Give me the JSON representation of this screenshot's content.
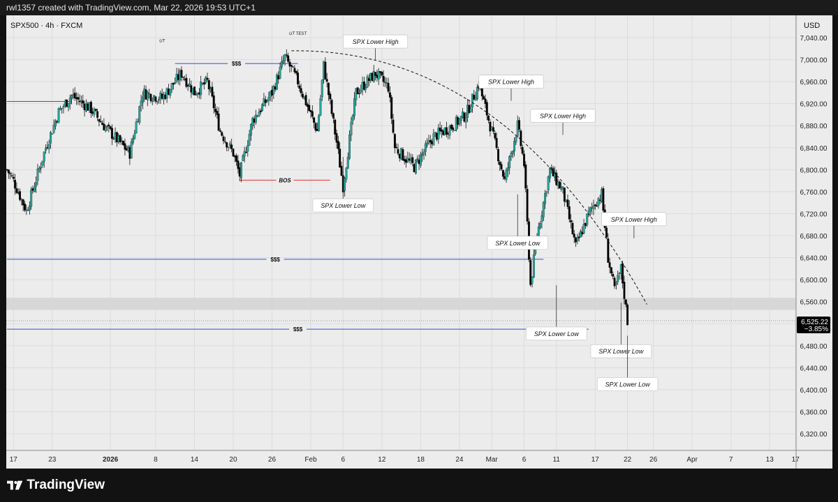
{
  "header": {
    "attribution": "rwl1357 created with TradingView.com, Mar 22, 2026 19:53 UTC+1"
  },
  "chart": {
    "symbol": "SPX500 · 4h · FXCM",
    "currency": "USD"
  },
  "price_badge": {
    "price": "6,525.22",
    "change": "−3.85%"
  },
  "footer": {
    "brand": "TradingView"
  },
  "colors": {
    "up": "#26a69a",
    "down": "#000000",
    "level_line": "#2f4fd6",
    "bos_line": "#e03030",
    "zone": "#d4d4d4",
    "badge_bg": "#000000"
  },
  "chart_data": {
    "type": "candlestick",
    "instrument": "SPX500",
    "timeframe": "4h",
    "source": "FXCM",
    "y_axis": {
      "unit": "USD",
      "range": [
        6300,
        7080
      ],
      "ticks": [
        "7,040.00",
        "7,000.00",
        "6,960.00",
        "6,920.00",
        "6,880.00",
        "6,840.00",
        "6,800.00",
        "6,760.00",
        "6,720.00",
        "6,680.00",
        "6,640.00",
        "6,600.00",
        "6,560.00",
        "6,520.00",
        "6,480.00",
        "6,440.00",
        "6,400.00",
        "6,360.00",
        "6,320.00"
      ]
    },
    "x_axis": {
      "range": [
        "2025-12-16",
        "2026-04-20"
      ],
      "ticks": [
        {
          "label": "17",
          "date": "2025-12-17"
        },
        {
          "label": "23",
          "date": "2025-12-23"
        },
        {
          "label": "2026",
          "date": "2026-01-01"
        },
        {
          "label": "8",
          "date": "2026-01-08"
        },
        {
          "label": "14",
          "date": "2026-01-14"
        },
        {
          "label": "20",
          "date": "2026-01-20"
        },
        {
          "label": "26",
          "date": "2026-01-26"
        },
        {
          "label": "Feb",
          "date": "2026-02-01"
        },
        {
          "label": "6",
          "date": "2026-02-06"
        },
        {
          "label": "12",
          "date": "2026-02-12"
        },
        {
          "label": "18",
          "date": "2026-02-18"
        },
        {
          "label": "24",
          "date": "2026-02-24"
        },
        {
          "label": "Mar",
          "date": "2026-03-01"
        },
        {
          "label": "6",
          "date": "2026-03-06"
        },
        {
          "label": "11",
          "date": "2026-03-11"
        },
        {
          "label": "17",
          "date": "2026-03-17"
        },
        {
          "label": "22",
          "date": "2026-03-22"
        },
        {
          "label": "26",
          "date": "2026-03-26"
        },
        {
          "label": "Apr",
          "date": "2026-04-01"
        },
        {
          "label": "7",
          "date": "2026-04-07"
        },
        {
          "label": "13",
          "date": "2026-04-13"
        },
        {
          "label": "17",
          "date": "2026-04-17"
        }
      ]
    },
    "price_path": [
      {
        "date": "2025-12-16",
        "price": 6800
      },
      {
        "date": "2025-12-17",
        "price": 6780
      },
      {
        "date": "2025-12-19",
        "price": 6725
      },
      {
        "date": "2025-12-22",
        "price": 6840
      },
      {
        "date": "2025-12-24",
        "price": 6905
      },
      {
        "date": "2025-12-26",
        "price": 6935
      },
      {
        "date": "2025-12-29",
        "price": 6910
      },
      {
        "date": "2025-12-31",
        "price": 6880
      },
      {
        "date": "2026-01-02",
        "price": 6855
      },
      {
        "date": "2026-01-04",
        "price": 6830
      },
      {
        "date": "2026-01-06",
        "price": 6940
      },
      {
        "date": "2026-01-09",
        "price": 6930
      },
      {
        "date": "2026-01-12",
        "price": 6975
      },
      {
        "date": "2026-01-14",
        "price": 6940
      },
      {
        "date": "2026-01-16",
        "price": 6960
      },
      {
        "date": "2026-01-18",
        "price": 6870
      },
      {
        "date": "2026-01-20",
        "price": 6830
      },
      {
        "date": "2026-01-21",
        "price": 6790
      },
      {
        "date": "2026-01-23",
        "price": 6890
      },
      {
        "date": "2026-01-26",
        "price": 6940
      },
      {
        "date": "2026-01-28",
        "price": 7005
      },
      {
        "date": "2026-01-30",
        "price": 6960
      },
      {
        "date": "2026-02-02",
        "price": 6870
      },
      {
        "date": "2026-02-03",
        "price": 6990
      },
      {
        "date": "2026-02-05",
        "price": 6850
      },
      {
        "date": "2026-02-06",
        "price": 6770
      },
      {
        "date": "2026-02-08",
        "price": 6940
      },
      {
        "date": "2026-02-11",
        "price": 6975
      },
      {
        "date": "2026-02-13",
        "price": 6950
      },
      {
        "date": "2026-02-14",
        "price": 6840
      },
      {
        "date": "2026-02-17",
        "price": 6805
      },
      {
        "date": "2026-02-20",
        "price": 6860
      },
      {
        "date": "2026-02-23",
        "price": 6880
      },
      {
        "date": "2026-02-25",
        "price": 6900
      },
      {
        "date": "2026-02-27",
        "price": 6955
      },
      {
        "date": "2026-03-01",
        "price": 6870
      },
      {
        "date": "2026-03-03",
        "price": 6780
      },
      {
        "date": "2026-03-05",
        "price": 6880
      },
      {
        "date": "2026-03-06",
        "price": 6810
      },
      {
        "date": "2026-03-07",
        "price": 6590
      },
      {
        "date": "2026-03-08",
        "price": 6680
      },
      {
        "date": "2026-03-10",
        "price": 6800
      },
      {
        "date": "2026-03-12",
        "price": 6760
      },
      {
        "date": "2026-03-14",
        "price": 6660
      },
      {
        "date": "2026-03-16",
        "price": 6720
      },
      {
        "date": "2026-03-17",
        "price": 6740
      },
      {
        "date": "2026-03-18",
        "price": 6755
      },
      {
        "date": "2026-03-19",
        "price": 6640
      },
      {
        "date": "2026-03-20",
        "price": 6580
      },
      {
        "date": "2026-03-21",
        "price": 6620
      },
      {
        "date": "2026-03-22",
        "price": 6525
      }
    ],
    "annotations": [
      {
        "label": "SPX Lower High",
        "date": "2026-02-11",
        "price": 7033
      },
      {
        "label": "SPX Lower High",
        "date": "2026-03-04",
        "price": 6960
      },
      {
        "label": "SPX Lower High",
        "date": "2026-03-12",
        "price": 6898
      },
      {
        "label": "SPX Lower High",
        "date": "2026-03-23",
        "price": 6710
      },
      {
        "label": "SPX Lower Low",
        "date": "2026-02-06",
        "price": 6735
      },
      {
        "label": "SPX Lower Low",
        "date": "2026-03-05",
        "price": 6667
      },
      {
        "label": "SPX Lower Low",
        "date": "2026-03-11",
        "price": 6502
      },
      {
        "label": "SPX Lower Low",
        "date": "2026-03-21",
        "price": 6470
      },
      {
        "label": "SPX Lower Low",
        "date": "2026-03-22",
        "price": 6410
      }
    ],
    "levels": [
      {
        "label": "$$$",
        "price": 6993,
        "from": "2026-01-11",
        "to": "2026-01-30"
      },
      {
        "label": "BOS",
        "price": 6781,
        "from": "2026-01-21",
        "to": "2026-02-04"
      },
      {
        "label": "$$$",
        "price": 6637,
        "from": "2025-12-16",
        "to": "2026-03-09"
      },
      {
        "label": "$$$",
        "price": 6510,
        "from": "2025-12-16",
        "to": "2026-03-16"
      },
      {
        "label": "",
        "price": 6924,
        "from": "2025-12-16",
        "to": "2025-12-26"
      }
    ],
    "text_labels": [
      {
        "label": "UT",
        "date": "2026-01-09",
        "price": 7032
      },
      {
        "label": "UT TEST",
        "date": "2026-01-30",
        "price": 7045
      }
    ],
    "zone": {
      "from": 6545,
      "to": 6567
    },
    "trendline": {
      "style": "dashed",
      "from": {
        "date": "2026-01-29",
        "price": 7016
      },
      "to": {
        "date": "2026-03-25",
        "price": 6555
      }
    },
    "last_price": 6525.22,
    "change_pct": -3.85
  }
}
